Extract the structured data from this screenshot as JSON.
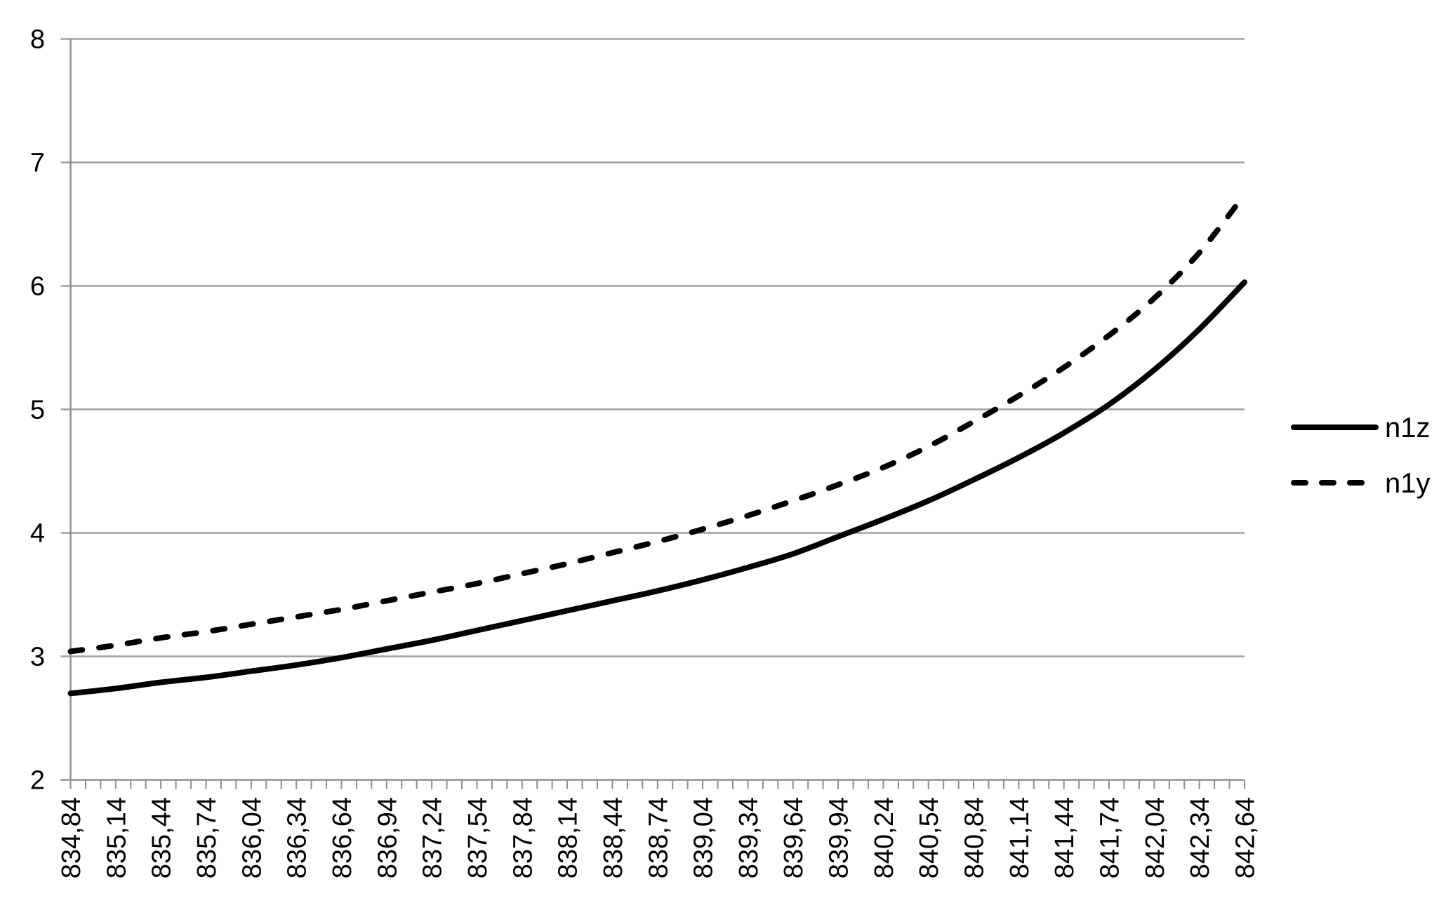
{
  "chart_data": {
    "type": "line",
    "title": "",
    "xlabel": "",
    "ylabel": "",
    "categories": [
      "834,84",
      "835,14",
      "835,44",
      "835,74",
      "836,04",
      "836,34",
      "836,64",
      "836,94",
      "837,24",
      "837,54",
      "837,84",
      "838,14",
      "838,44",
      "838,74",
      "839,04",
      "839,34",
      "839,64",
      "839,94",
      "840,24",
      "840,54",
      "840,84",
      "841,14",
      "841,44",
      "841,74",
      "842,04",
      "842,34",
      "842,64"
    ],
    "series": [
      {
        "name": "n1z",
        "line_style": "solid",
        "color": "#000000",
        "values": [
          2.7,
          2.74,
          2.79,
          2.83,
          2.88,
          2.93,
          2.99,
          3.06,
          3.13,
          3.21,
          3.29,
          3.37,
          3.45,
          3.53,
          3.62,
          3.72,
          3.83,
          3.97,
          4.11,
          4.26,
          4.43,
          4.61,
          4.81,
          5.04,
          5.32,
          5.65,
          6.03
        ]
      },
      {
        "name": "n1y",
        "line_style": "dashed",
        "color": "#000000",
        "values": [
          3.04,
          3.09,
          3.15,
          3.2,
          3.26,
          3.32,
          3.38,
          3.45,
          3.52,
          3.59,
          3.67,
          3.75,
          3.84,
          3.93,
          4.03,
          4.14,
          4.26,
          4.39,
          4.53,
          4.7,
          4.9,
          5.11,
          5.34,
          5.6,
          5.9,
          6.27,
          6.74
        ]
      }
    ],
    "ylim": [
      2,
      8
    ],
    "y_ticks": [
      8,
      7,
      6,
      5,
      4,
      3,
      2
    ],
    "minor_x_ticks_per_label_interval": 3,
    "x_tick_label_rotation": -90,
    "grid": "horizontal",
    "legend_position": "right",
    "gridline_color": "#a0a0a0",
    "axis_color": "#8e8e8e",
    "text_color": "#000000",
    "background_color": "#ffffff"
  }
}
